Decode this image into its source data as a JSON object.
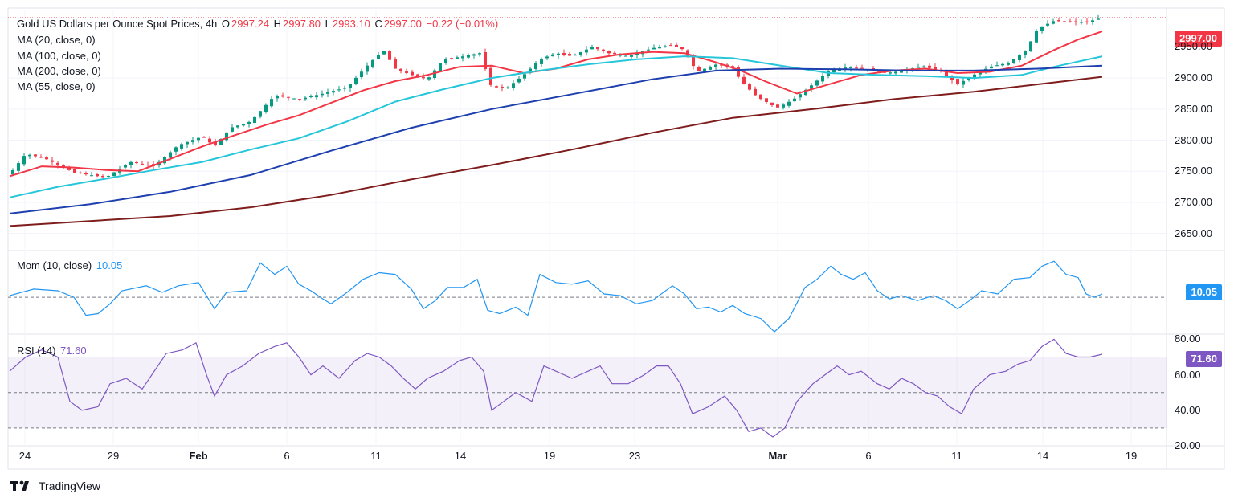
{
  "header": {
    "symbol": "Gold US Dollars per Ounce Spot Prices, 4h",
    "open_label": "O",
    "open": "2997.24",
    "high_label": "H",
    "high": "2997.80",
    "low_label": "L",
    "low": "2993.10",
    "close_label": "C",
    "close": "2997.00",
    "change": "−0.22 (−0.01%)"
  },
  "ma_legend": [
    "MA (20, close, 0)",
    "MA (100, close, 0)",
    "MA (200, close, 0)",
    "MA (55, close, 0)"
  ],
  "momentum": {
    "label": "Mom (10, close)",
    "value": "10.05",
    "badge": "10.05"
  },
  "rsi": {
    "label": "RSI (14)",
    "value": "71.60",
    "badge": "71.60"
  },
  "price_badge": "2997.00",
  "brand": "TradingView",
  "colors": {
    "up": "#089981",
    "down": "#f23645",
    "ma20": "#f23645",
    "ma55": "#26c6da",
    "ma100": "#1e40af",
    "ma200": "#7f1d1d",
    "mom": "#2196f3",
    "rsi": "#7e57c2"
  },
  "chart_data": {
    "type": "candlestick",
    "title": "Gold US Dollars per Ounce Spot Prices, 4h",
    "price_axis": {
      "ticks": [
        "2650.00",
        "2700.00",
        "2750.00",
        "2800.00",
        "2850.00",
        "2900.00",
        "2950.00"
      ],
      "ylim": [
        2625,
        3010
      ]
    },
    "time_axis": [
      "24",
      "29",
      "Feb",
      "6",
      "11",
      "14",
      "19",
      "23",
      "Mar",
      "6",
      "11",
      "14",
      "19"
    ],
    "series": [
      {
        "name": "Gold price (close, approx.)",
        "key": "price",
        "points": [
          [
            0,
            2745
          ],
          [
            20,
            2778
          ],
          [
            45,
            2770
          ],
          [
            80,
            2748
          ],
          [
            120,
            2740
          ],
          [
            150,
            2765
          ],
          [
            180,
            2758
          ],
          [
            210,
            2792
          ],
          [
            240,
            2806
          ],
          [
            255,
            2790
          ],
          [
            275,
            2820
          ],
          [
            300,
            2830
          ],
          [
            330,
            2872
          ],
          [
            360,
            2866
          ],
          [
            390,
            2875
          ],
          [
            420,
            2885
          ],
          [
            445,
            2920
          ],
          [
            465,
            2945
          ],
          [
            480,
            2915
          ],
          [
            500,
            2905
          ],
          [
            520,
            2898
          ],
          [
            540,
            2930
          ],
          [
            565,
            2935
          ],
          [
            585,
            2940
          ],
          [
            600,
            2885
          ],
          [
            620,
            2885
          ],
          [
            640,
            2905
          ],
          [
            660,
            2930
          ],
          [
            680,
            2940
          ],
          [
            700,
            2935
          ],
          [
            725,
            2950
          ],
          [
            745,
            2940
          ],
          [
            770,
            2935
          ],
          [
            800,
            2948
          ],
          [
            825,
            2953
          ],
          [
            840,
            2945
          ],
          [
            855,
            2910
          ],
          [
            880,
            2922
          ],
          [
            900,
            2918
          ],
          [
            910,
            2895
          ],
          [
            930,
            2870
          ],
          [
            955,
            2852
          ],
          [
            975,
            2865
          ],
          [
            995,
            2885
          ],
          [
            1020,
            2912
          ],
          [
            1045,
            2918
          ],
          [
            1065,
            2915
          ],
          [
            1090,
            2908
          ],
          [
            1115,
            2912
          ],
          [
            1135,
            2920
          ],
          [
            1160,
            2910
          ],
          [
            1180,
            2890
          ],
          [
            1200,
            2905
          ],
          [
            1220,
            2918
          ],
          [
            1245,
            2925
          ],
          [
            1265,
            2945
          ],
          [
            1280,
            2980
          ],
          [
            1300,
            2992
          ],
          [
            1320,
            2990
          ],
          [
            1340,
            2990
          ],
          [
            1360,
            2997
          ]
        ]
      },
      {
        "name": "MA 20",
        "key": "ma20",
        "points": [
          [
            0,
            2742
          ],
          [
            40,
            2758
          ],
          [
            80,
            2756
          ],
          [
            120,
            2752
          ],
          [
            160,
            2750
          ],
          [
            200,
            2770
          ],
          [
            240,
            2790
          ],
          [
            280,
            2808
          ],
          [
            320,
            2825
          ],
          [
            360,
            2840
          ],
          [
            400,
            2860
          ],
          [
            440,
            2880
          ],
          [
            480,
            2895
          ],
          [
            520,
            2905
          ],
          [
            560,
            2918
          ],
          [
            600,
            2920
          ],
          [
            640,
            2908
          ],
          [
            680,
            2915
          ],
          [
            720,
            2930
          ],
          [
            760,
            2938
          ],
          [
            800,
            2942
          ],
          [
            840,
            2940
          ],
          [
            880,
            2925
          ],
          [
            910,
            2912
          ],
          [
            940,
            2895
          ],
          [
            980,
            2875
          ],
          [
            1020,
            2890
          ],
          [
            1060,
            2905
          ],
          [
            1100,
            2912
          ],
          [
            1140,
            2915
          ],
          [
            1180,
            2908
          ],
          [
            1220,
            2910
          ],
          [
            1260,
            2920
          ],
          [
            1300,
            2945
          ],
          [
            1330,
            2962
          ],
          [
            1360,
            2975
          ]
        ]
      },
      {
        "name": "MA 55",
        "key": "ma55",
        "points": [
          [
            0,
            2708
          ],
          [
            60,
            2725
          ],
          [
            120,
            2738
          ],
          [
            180,
            2752
          ],
          [
            240,
            2765
          ],
          [
            300,
            2785
          ],
          [
            360,
            2803
          ],
          [
            420,
            2830
          ],
          [
            480,
            2862
          ],
          [
            540,
            2882
          ],
          [
            600,
            2900
          ],
          [
            660,
            2912
          ],
          [
            720,
            2922
          ],
          [
            780,
            2930
          ],
          [
            840,
            2935
          ],
          [
            900,
            2932
          ],
          [
            960,
            2920
          ],
          [
            1020,
            2908
          ],
          [
            1080,
            2905
          ],
          [
            1140,
            2903
          ],
          [
            1200,
            2900
          ],
          [
            1260,
            2905
          ],
          [
            1300,
            2918
          ],
          [
            1360,
            2935
          ]
        ]
      },
      {
        "name": "MA 100",
        "key": "ma100",
        "points": [
          [
            0,
            2682
          ],
          [
            100,
            2697
          ],
          [
            200,
            2717
          ],
          [
            300,
            2744
          ],
          [
            400,
            2783
          ],
          [
            500,
            2820
          ],
          [
            600,
            2850
          ],
          [
            700,
            2874
          ],
          [
            800,
            2898
          ],
          [
            880,
            2912
          ],
          [
            960,
            2915
          ],
          [
            1040,
            2914
          ],
          [
            1120,
            2912
          ],
          [
            1200,
            2912
          ],
          [
            1280,
            2915
          ],
          [
            1360,
            2920
          ]
        ]
      },
      {
        "name": "MA 200",
        "key": "ma200",
        "points": [
          [
            0,
            2662
          ],
          [
            100,
            2670
          ],
          [
            200,
            2678
          ],
          [
            300,
            2692
          ],
          [
            400,
            2712
          ],
          [
            500,
            2737
          ],
          [
            600,
            2760
          ],
          [
            700,
            2785
          ],
          [
            800,
            2812
          ],
          [
            900,
            2836
          ],
          [
            1000,
            2850
          ],
          [
            1100,
            2866
          ],
          [
            1200,
            2878
          ],
          [
            1300,
            2893
          ],
          [
            1360,
            2902
          ]
        ]
      }
    ],
    "momentum": {
      "label": "Mom (10, close)",
      "zero_line": 0,
      "ylim": [
        -110,
        140
      ],
      "points": [
        [
          0,
          5
        ],
        [
          30,
          25
        ],
        [
          60,
          20
        ],
        [
          80,
          0
        ],
        [
          95,
          -55
        ],
        [
          110,
          -50
        ],
        [
          125,
          -20
        ],
        [
          140,
          20
        ],
        [
          170,
          35
        ],
        [
          190,
          15
        ],
        [
          210,
          35
        ],
        [
          235,
          45
        ],
        [
          245,
          5
        ],
        [
          255,
          -35
        ],
        [
          270,
          15
        ],
        [
          295,
          20
        ],
        [
          312,
          105
        ],
        [
          330,
          70
        ],
        [
          345,
          95
        ],
        [
          360,
          40
        ],
        [
          375,
          20
        ],
        [
          390,
          -5
        ],
        [
          400,
          -20
        ],
        [
          420,
          15
        ],
        [
          440,
          55
        ],
        [
          460,
          75
        ],
        [
          480,
          70
        ],
        [
          500,
          25
        ],
        [
          515,
          -35
        ],
        [
          530,
          -10
        ],
        [
          545,
          30
        ],
        [
          565,
          30
        ],
        [
          582,
          55
        ],
        [
          595,
          -40
        ],
        [
          610,
          -50
        ],
        [
          630,
          -30
        ],
        [
          645,
          -55
        ],
        [
          660,
          70
        ],
        [
          680,
          45
        ],
        [
          700,
          40
        ],
        [
          720,
          50
        ],
        [
          740,
          10
        ],
        [
          760,
          5
        ],
        [
          780,
          -20
        ],
        [
          800,
          -10
        ],
        [
          825,
          35
        ],
        [
          840,
          10
        ],
        [
          855,
          -35
        ],
        [
          870,
          -30
        ],
        [
          885,
          -45
        ],
        [
          900,
          -25
        ],
        [
          915,
          -50
        ],
        [
          935,
          -65
        ],
        [
          952,
          -105
        ],
        [
          970,
          -65
        ],
        [
          990,
          30
        ],
        [
          1005,
          55
        ],
        [
          1022,
          95
        ],
        [
          1035,
          70
        ],
        [
          1050,
          55
        ],
        [
          1065,
          75
        ],
        [
          1080,
          20
        ],
        [
          1095,
          -5
        ],
        [
          1110,
          5
        ],
        [
          1130,
          -10
        ],
        [
          1150,
          5
        ],
        [
          1165,
          -10
        ],
        [
          1180,
          -35
        ],
        [
          1195,
          -10
        ],
        [
          1210,
          20
        ],
        [
          1230,
          10
        ],
        [
          1250,
          55
        ],
        [
          1270,
          60
        ],
        [
          1285,
          95
        ],
        [
          1300,
          110
        ],
        [
          1315,
          70
        ],
        [
          1330,
          60
        ],
        [
          1340,
          10
        ],
        [
          1350,
          0
        ],
        [
          1360,
          10
        ]
      ]
    },
    "rsi": {
      "label": "RSI (14)",
      "levels": [
        70,
        50,
        30
      ],
      "ticks": [
        "20.00",
        "40.00",
        "60.00",
        "80.00"
      ],
      "ylim": [
        20,
        82
      ],
      "points": [
        [
          0,
          62
        ],
        [
          20,
          70
        ],
        [
          40,
          74
        ],
        [
          60,
          70
        ],
        [
          75,
          45
        ],
        [
          90,
          40
        ],
        [
          110,
          42
        ],
        [
          125,
          55
        ],
        [
          145,
          58
        ],
        [
          165,
          52
        ],
        [
          180,
          62
        ],
        [
          195,
          72
        ],
        [
          215,
          74
        ],
        [
          232,
          78
        ],
        [
          245,
          60
        ],
        [
          255,
          48
        ],
        [
          270,
          60
        ],
        [
          290,
          65
        ],
        [
          310,
          72
        ],
        [
          330,
          76
        ],
        [
          345,
          78
        ],
        [
          360,
          70
        ],
        [
          375,
          60
        ],
        [
          390,
          65
        ],
        [
          410,
          58
        ],
        [
          430,
          68
        ],
        [
          445,
          72
        ],
        [
          460,
          70
        ],
        [
          475,
          65
        ],
        [
          490,
          58
        ],
        [
          505,
          52
        ],
        [
          520,
          58
        ],
        [
          540,
          62
        ],
        [
          560,
          68
        ],
        [
          575,
          70
        ],
        [
          590,
          62
        ],
        [
          600,
          40
        ],
        [
          615,
          45
        ],
        [
          630,
          50
        ],
        [
          650,
          45
        ],
        [
          665,
          65
        ],
        [
          680,
          62
        ],
        [
          700,
          58
        ],
        [
          720,
          62
        ],
        [
          735,
          65
        ],
        [
          750,
          55
        ],
        [
          770,
          55
        ],
        [
          790,
          60
        ],
        [
          805,
          65
        ],
        [
          820,
          65
        ],
        [
          835,
          55
        ],
        [
          850,
          38
        ],
        [
          870,
          42
        ],
        [
          890,
          48
        ],
        [
          905,
          40
        ],
        [
          920,
          28
        ],
        [
          935,
          30
        ],
        [
          950,
          25
        ],
        [
          965,
          30
        ],
        [
          980,
          45
        ],
        [
          1000,
          55
        ],
        [
          1015,
          60
        ],
        [
          1030,
          65
        ],
        [
          1045,
          60
        ],
        [
          1060,
          62
        ],
        [
          1080,
          55
        ],
        [
          1095,
          52
        ],
        [
          1110,
          58
        ],
        [
          1125,
          55
        ],
        [
          1140,
          50
        ],
        [
          1155,
          48
        ],
        [
          1170,
          42
        ],
        [
          1185,
          38
        ],
        [
          1200,
          52
        ],
        [
          1220,
          60
        ],
        [
          1240,
          62
        ],
        [
          1255,
          66
        ],
        [
          1270,
          68
        ],
        [
          1285,
          76
        ],
        [
          1300,
          80
        ],
        [
          1315,
          72
        ],
        [
          1330,
          70
        ],
        [
          1345,
          70
        ],
        [
          1360,
          71.6
        ]
      ]
    }
  }
}
